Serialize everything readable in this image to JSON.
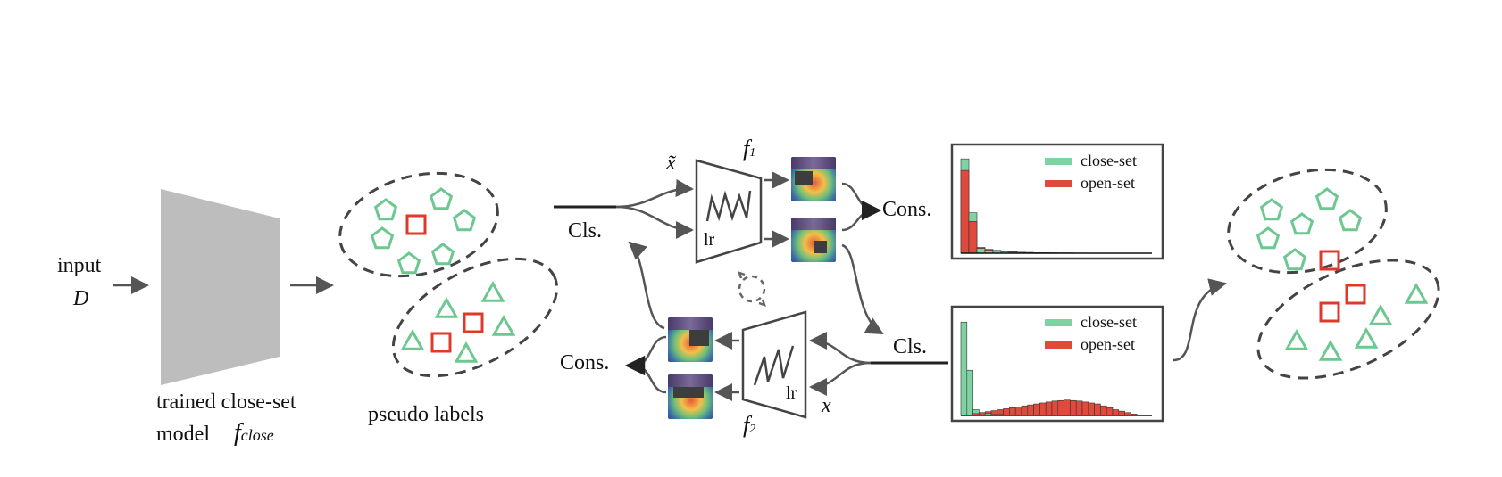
{
  "labels": {
    "input": "input",
    "input_var": "D",
    "model_line1": "trained close-set",
    "model_line2": "model",
    "model_fn": "f",
    "model_fn_sub": "close",
    "pseudo_labels": "pseudo labels",
    "x_tilde": "x̃",
    "x": "x",
    "f1": "f",
    "f1_sub": "1",
    "f2": "f",
    "f2_sub": "2",
    "lr_top": "lr",
    "lr_bottom": "lr",
    "cls_top": "Cls.",
    "cons_top": "Cons.",
    "cls_right": "Cls.",
    "cons_bottom": "Cons."
  },
  "histogram_top": {
    "legend": [
      "close-set",
      "open-set"
    ],
    "close_set": [
      0.98,
      0.42,
      0.05,
      0.03,
      0.02,
      0.015,
      0.01,
      0.01,
      0.008,
      0.006,
      0.005,
      0.004,
      0.003,
      0.003,
      0.002,
      0.002
    ],
    "open_set": [
      0.86,
      0.33,
      0.06,
      0.04,
      0.03,
      0.02,
      0.015,
      0.01,
      0.008,
      0.006,
      0.005,
      0.004,
      0.003,
      0.003,
      0.002,
      0.002
    ]
  },
  "histogram_bottom": {
    "legend": [
      "close-set",
      "open-set"
    ],
    "close_set": [
      0.97,
      0.47,
      0.06,
      0.03,
      0.02,
      0.01,
      0.01,
      0.005,
      0,
      0,
      0,
      0,
      0,
      0,
      0,
      0,
      0,
      0,
      0,
      0,
      0,
      0,
      0,
      0,
      0,
      0,
      0,
      0,
      0,
      0
    ],
    "open_set": [
      0,
      0,
      0.02,
      0.03,
      0.04,
      0.05,
      0.06,
      0.07,
      0.08,
      0.09,
      0.1,
      0.11,
      0.12,
      0.13,
      0.14,
      0.15,
      0.155,
      0.16,
      0.155,
      0.15,
      0.14,
      0.13,
      0.12,
      0.1,
      0.08,
      0.06,
      0.045,
      0.03,
      0.015,
      0.005
    ]
  },
  "colors": {
    "close_set": "#7fd3a3",
    "open_set": "#e04a3c",
    "pentagon": "#6cc890",
    "square": "#e0392c",
    "cluster_border": "#444444",
    "model_fill": "#bdbdbd",
    "arrow": "#555555"
  }
}
